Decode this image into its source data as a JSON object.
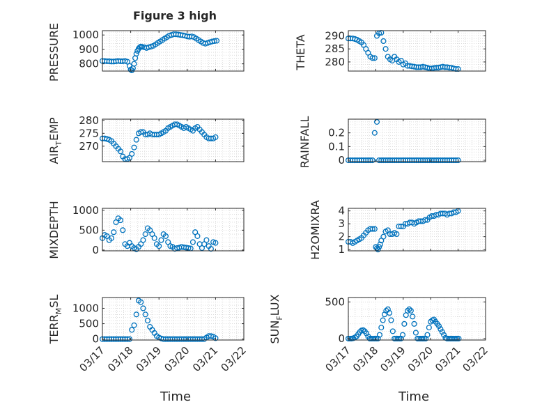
{
  "figure": {
    "title": "Figure 3 high",
    "marker_color": "#0072BD",
    "axis_color": "#262626",
    "grid": "dotted minor grid on"
  },
  "chart_data": [
    {
      "type": "scatter",
      "ylabel": "PRESSURE",
      "xlim": [
        "03/17",
        "03/22"
      ],
      "ylim": [
        750,
        1030
      ],
      "yticks": [
        800,
        900,
        1000
      ],
      "xticks": [
        "03/17",
        "03/18",
        "03/19",
        "03/20",
        "03/21",
        "03/22"
      ],
      "x_days": [
        0.0,
        0.08,
        0.16,
        0.24,
        0.32,
        0.4,
        0.48,
        0.56,
        0.64,
        0.72,
        0.8,
        0.88,
        0.96,
        1.0,
        1.04,
        1.08,
        1.12,
        1.16,
        1.2,
        1.24,
        1.28,
        1.32,
        1.36,
        1.4,
        1.48,
        1.56,
        1.64,
        1.72,
        1.8,
        1.88,
        1.96,
        2.04,
        2.12,
        2.2,
        2.28,
        2.36,
        2.44,
        2.52,
        2.6,
        2.68,
        2.76,
        2.84,
        2.92,
        3.0,
        3.08,
        3.16,
        3.24,
        3.32,
        3.4,
        3.48,
        3.56,
        3.64,
        3.72,
        3.8,
        3.88,
        3.96,
        4.04
      ],
      "y": [
        820,
        820,
        818,
        818,
        816,
        816,
        818,
        820,
        818,
        818,
        820,
        815,
        785,
        760,
        755,
        770,
        800,
        840,
        870,
        890,
        905,
        915,
        920,
        918,
        915,
        910,
        915,
        920,
        925,
        935,
        945,
        955,
        965,
        975,
        985,
        995,
        1000,
        1005,
        1005,
        1003,
        1000,
        998,
        995,
        990,
        988,
        990,
        985,
        975,
        965,
        955,
        945,
        940,
        945,
        950,
        955,
        958,
        960
      ]
    },
    {
      "type": "scatter",
      "ylabel": "THETA",
      "xlim": [
        "03/17",
        "03/22"
      ],
      "ylim": [
        276.5,
        292
      ],
      "yticks": [
        280,
        285,
        290
      ],
      "xticks": [
        "03/17",
        "03/18",
        "03/19",
        "03/20",
        "03/21",
        "03/22"
      ],
      "x_days": [
        0.0,
        0.08,
        0.16,
        0.24,
        0.32,
        0.4,
        0.48,
        0.56,
        0.64,
        0.72,
        0.8,
        0.88,
        0.96,
        1.04,
        1.12,
        1.2,
        1.28,
        1.36,
        1.44,
        1.52,
        1.6,
        1.68,
        1.76,
        1.84,
        1.92,
        2.0,
        2.08,
        2.16,
        2.24,
        2.32,
        2.4,
        2.48,
        2.56,
        2.64,
        2.72,
        2.8,
        2.88,
        2.96,
        3.04,
        3.12,
        3.2,
        3.28,
        3.36,
        3.44,
        3.52,
        3.6,
        3.68,
        3.76,
        3.84,
        3.92,
        4.0
      ],
      "y": [
        289,
        289,
        289,
        288.8,
        288.5,
        288,
        287.5,
        286.5,
        285,
        283.5,
        282,
        281.5,
        281.5,
        290,
        291,
        291.2,
        288,
        285,
        282,
        281,
        280.5,
        282,
        281,
        280,
        280.5,
        279,
        279.5,
        278.5,
        278.5,
        278.3,
        278.2,
        278,
        278,
        278,
        278.2,
        278,
        277.8,
        277.5,
        277.5,
        277.7,
        277.8,
        277.8,
        278,
        278.2,
        278,
        278,
        277.8,
        277.8,
        277.5,
        277.3,
        277.3
      ]
    },
    {
      "type": "scatter",
      "ylabel": "AIR_TEMP",
      "xlim": [
        "03/17",
        "03/22"
      ],
      "ylim": [
        264,
        280.5
      ],
      "yticks": [
        270,
        275,
        280
      ],
      "xticks": [
        "03/17",
        "03/18",
        "03/19",
        "03/20",
        "03/21",
        "03/22"
      ],
      "x_days": [
        0.0,
        0.08,
        0.16,
        0.24,
        0.32,
        0.4,
        0.48,
        0.56,
        0.64,
        0.72,
        0.8,
        0.88,
        0.96,
        1.04,
        1.12,
        1.2,
        1.28,
        1.36,
        1.44,
        1.52,
        1.6,
        1.68,
        1.76,
        1.84,
        1.92,
        2.0,
        2.08,
        2.16,
        2.24,
        2.32,
        2.4,
        2.48,
        2.56,
        2.64,
        2.72,
        2.8,
        2.88,
        2.96,
        3.04,
        3.12,
        3.2,
        3.28,
        3.36,
        3.44,
        3.52,
        3.6,
        3.68,
        3.76,
        3.84,
        3.92,
        4.0
      ],
      "y": [
        273,
        273,
        272.8,
        272.5,
        272,
        271,
        270,
        269,
        268,
        266,
        265,
        265,
        265.5,
        267,
        269.5,
        272.5,
        275,
        275.5,
        275.5,
        274.5,
        274.5,
        275,
        274.5,
        274.5,
        274.5,
        274.5,
        275,
        275.5,
        276,
        277,
        277.5,
        278,
        278.5,
        278.5,
        278,
        277.5,
        277,
        277.5,
        277,
        276.5,
        276,
        277,
        277.5,
        276.5,
        275.5,
        274.5,
        273.5,
        273,
        273,
        273,
        273.5
      ]
    },
    {
      "type": "scatter",
      "ylabel": "RAINFALL",
      "xlim": [
        "03/17",
        "03/22"
      ],
      "ylim": [
        -0.01,
        0.3
      ],
      "yticks": [
        0,
        0.1,
        0.2
      ],
      "xticks": [
        "03/17",
        "03/18",
        "03/19",
        "03/20",
        "03/21",
        "03/22"
      ],
      "x_days": [
        0.0,
        0.08,
        0.16,
        0.24,
        0.32,
        0.4,
        0.48,
        0.56,
        0.64,
        0.72,
        0.8,
        0.88,
        0.96,
        1.04,
        1.12,
        1.2,
        1.28,
        1.36,
        1.44,
        1.52,
        1.6,
        1.68,
        1.76,
        1.84,
        1.92,
        2.0,
        2.08,
        2.16,
        2.24,
        2.32,
        2.4,
        2.48,
        2.56,
        2.64,
        2.72,
        2.8,
        2.88,
        2.96,
        3.04,
        3.12,
        3.2,
        3.28,
        3.36,
        3.44,
        3.52,
        3.6,
        3.68,
        3.76,
        3.84,
        3.92,
        4.0
      ],
      "y": [
        0,
        0,
        0,
        0,
        0,
        0,
        0,
        0,
        0,
        0,
        0,
        0,
        0.2,
        0.28,
        0,
        0,
        0,
        0,
        0,
        0,
        0,
        0,
        0,
        0,
        0,
        0,
        0,
        0,
        0,
        0,
        0,
        0,
        0,
        0,
        0,
        0,
        0,
        0,
        0,
        0,
        0,
        0,
        0,
        0,
        0,
        0,
        0,
        0,
        0,
        0,
        0
      ]
    },
    {
      "type": "scatter",
      "ylabel": "MIXDEPTH",
      "xlim": [
        "03/17",
        "03/22"
      ],
      "ylim": [
        -20,
        1050
      ],
      "yticks": [
        0,
        500,
        1000
      ],
      "xticks": [
        "03/17",
        "03/18",
        "03/19",
        "03/20",
        "03/21",
        "03/22"
      ],
      "x_days": [
        0.0,
        0.08,
        0.16,
        0.24,
        0.32,
        0.4,
        0.48,
        0.56,
        0.64,
        0.72,
        0.8,
        0.88,
        0.96,
        1.04,
        1.12,
        1.2,
        1.28,
        1.36,
        1.44,
        1.52,
        1.6,
        1.68,
        1.76,
        1.84,
        1.92,
        2.0,
        2.08,
        2.16,
        2.24,
        2.32,
        2.4,
        2.48,
        2.56,
        2.64,
        2.72,
        2.8,
        2.88,
        2.96,
        3.04,
        3.12,
        3.2,
        3.28,
        3.36,
        3.44,
        3.52,
        3.6,
        3.68,
        3.76,
        3.84,
        3.92,
        4.0
      ],
      "y": [
        300,
        380,
        350,
        250,
        300,
        450,
        700,
        800,
        750,
        500,
        150,
        100,
        180,
        100,
        50,
        20,
        80,
        150,
        250,
        400,
        550,
        500,
        400,
        300,
        150,
        100,
        250,
        400,
        350,
        200,
        100,
        80,
        30,
        50,
        60,
        80,
        70,
        60,
        50,
        40,
        200,
        450,
        350,
        150,
        50,
        150,
        250,
        100,
        30,
        200,
        180
      ]
    },
    {
      "type": "scatter",
      "ylabel": "H2OMIXRA",
      "xlim": [
        "03/17",
        "03/22"
      ],
      "ylim": [
        0.9,
        4.2
      ],
      "yticks": [
        1,
        2,
        3,
        4
      ],
      "xticks": [
        "03/17",
        "03/18",
        "03/19",
        "03/20",
        "03/21",
        "03/22"
      ],
      "x_days": [
        0.0,
        0.08,
        0.16,
        0.24,
        0.32,
        0.4,
        0.48,
        0.56,
        0.64,
        0.72,
        0.8,
        0.88,
        0.96,
        1.0,
        1.04,
        1.08,
        1.12,
        1.16,
        1.2,
        1.28,
        1.36,
        1.44,
        1.52,
        1.6,
        1.68,
        1.76,
        1.84,
        1.92,
        2.0,
        2.08,
        2.16,
        2.24,
        2.32,
        2.4,
        2.48,
        2.56,
        2.64,
        2.72,
        2.8,
        2.88,
        2.96,
        3.04,
        3.12,
        3.2,
        3.28,
        3.36,
        3.44,
        3.52,
        3.6,
        3.68,
        3.76,
        3.84,
        3.92,
        4.0
      ],
      "y": [
        1.6,
        1.6,
        1.5,
        1.6,
        1.7,
        1.8,
        1.9,
        2.1,
        2.3,
        2.5,
        2.6,
        2.6,
        2.6,
        1.2,
        1.1,
        1.0,
        1.2,
        1.4,
        1.7,
        2.0,
        2.4,
        2.5,
        2.2,
        2.2,
        2.3,
        2.2,
        2.8,
        2.8,
        2.8,
        3.0,
        3.0,
        3.1,
        3.1,
        3.0,
        3.1,
        3.2,
        3.2,
        3.2,
        3.3,
        3.3,
        3.5,
        3.6,
        3.6,
        3.7,
        3.7,
        3.8,
        3.8,
        3.8,
        3.7,
        3.8,
        3.8,
        3.9,
        3.9,
        4.0
      ]
    },
    {
      "type": "scatter",
      "ylabel": "TERR_MSL",
      "xlim": [
        "03/17",
        "03/22"
      ],
      "ylim": [
        -30,
        1350
      ],
      "yticks": [
        0,
        500,
        1000
      ],
      "xticks": [
        "03/17",
        "03/18",
        "03/19",
        "03/20",
        "03/21",
        "03/22"
      ],
      "x_days": [
        0.0,
        0.08,
        0.16,
        0.24,
        0.32,
        0.4,
        0.48,
        0.56,
        0.64,
        0.72,
        0.8,
        0.88,
        0.96,
        1.04,
        1.12,
        1.2,
        1.28,
        1.36,
        1.44,
        1.52,
        1.6,
        1.68,
        1.76,
        1.84,
        1.92,
        2.0,
        2.08,
        2.16,
        2.24,
        2.32,
        2.4,
        2.48,
        2.56,
        2.64,
        2.72,
        2.8,
        2.88,
        2.96,
        3.04,
        3.12,
        3.2,
        3.28,
        3.36,
        3.44,
        3.52,
        3.6,
        3.68,
        3.76,
        3.84,
        3.92,
        4.0
      ],
      "y": [
        0,
        0,
        0,
        0,
        0,
        0,
        0,
        0,
        0,
        0,
        0,
        0,
        0,
        300,
        450,
        800,
        1250,
        1200,
        1000,
        800,
        600,
        400,
        300,
        200,
        100,
        50,
        20,
        0,
        0,
        0,
        0,
        0,
        0,
        0,
        0,
        0,
        0,
        0,
        0,
        0,
        0,
        0,
        0,
        0,
        0,
        0,
        50,
        100,
        100,
        80,
        30
      ]
    },
    {
      "type": "scatter",
      "ylabel": "SUN_FLUX",
      "xlim": [
        "03/17",
        "03/22"
      ],
      "ylim": [
        -20,
        560
      ],
      "yticks": [
        0,
        500
      ],
      "xticks": [
        "03/17",
        "03/18",
        "03/19",
        "03/20",
        "03/21",
        "03/22"
      ],
      "x_days": [
        0.0,
        0.06,
        0.12,
        0.18,
        0.24,
        0.3,
        0.36,
        0.42,
        0.48,
        0.54,
        0.6,
        0.66,
        0.72,
        0.78,
        0.84,
        0.9,
        0.96,
        1.02,
        1.08,
        1.14,
        1.2,
        1.26,
        1.32,
        1.38,
        1.44,
        1.5,
        1.56,
        1.62,
        1.68,
        1.74,
        1.8,
        1.86,
        1.92,
        1.98,
        2.04,
        2.1,
        2.16,
        2.22,
        2.28,
        2.34,
        2.4,
        2.46,
        2.52,
        2.58,
        2.64,
        2.7,
        2.76,
        2.82,
        2.88,
        2.94,
        3.0,
        3.06,
        3.12,
        3.18,
        3.24,
        3.3,
        3.36,
        3.42,
        3.48,
        3.54,
        3.6,
        3.66,
        3.72,
        3.78,
        3.84,
        3.9,
        3.96,
        4.02
      ],
      "y": [
        0,
        0,
        0,
        5,
        15,
        30,
        60,
        90,
        110,
        115,
        100,
        70,
        30,
        0,
        0,
        0,
        0,
        0,
        0,
        50,
        150,
        250,
        330,
        380,
        400,
        350,
        250,
        100,
        0,
        0,
        0,
        0,
        0,
        50,
        200,
        320,
        380,
        400,
        380,
        300,
        200,
        80,
        0,
        0,
        0,
        0,
        0,
        0,
        50,
        150,
        230,
        250,
        260,
        230,
        200,
        170,
        130,
        90,
        50,
        10,
        0,
        0,
        0,
        0,
        0,
        0,
        0,
        0
      ]
    }
  ],
  "axis_labels": {
    "panel_1": "PRESSURE",
    "panel_2": "THETA",
    "panel_3_main": "AIR",
    "panel_3_sub": "T",
    "panel_3_tail": "EMP",
    "panel_4": "RAINFALL",
    "panel_5": "MIXDEPTH",
    "panel_6": "H2OMIXRA",
    "panel_7_main": "TERR",
    "panel_7_sub": "M",
    "panel_7_tail": "SL",
    "panel_8_main": "SUN",
    "panel_8_sub": "F",
    "panel_8_tail": "LUX",
    "xlabel_left": "Time",
    "xlabel_right": "Time"
  }
}
